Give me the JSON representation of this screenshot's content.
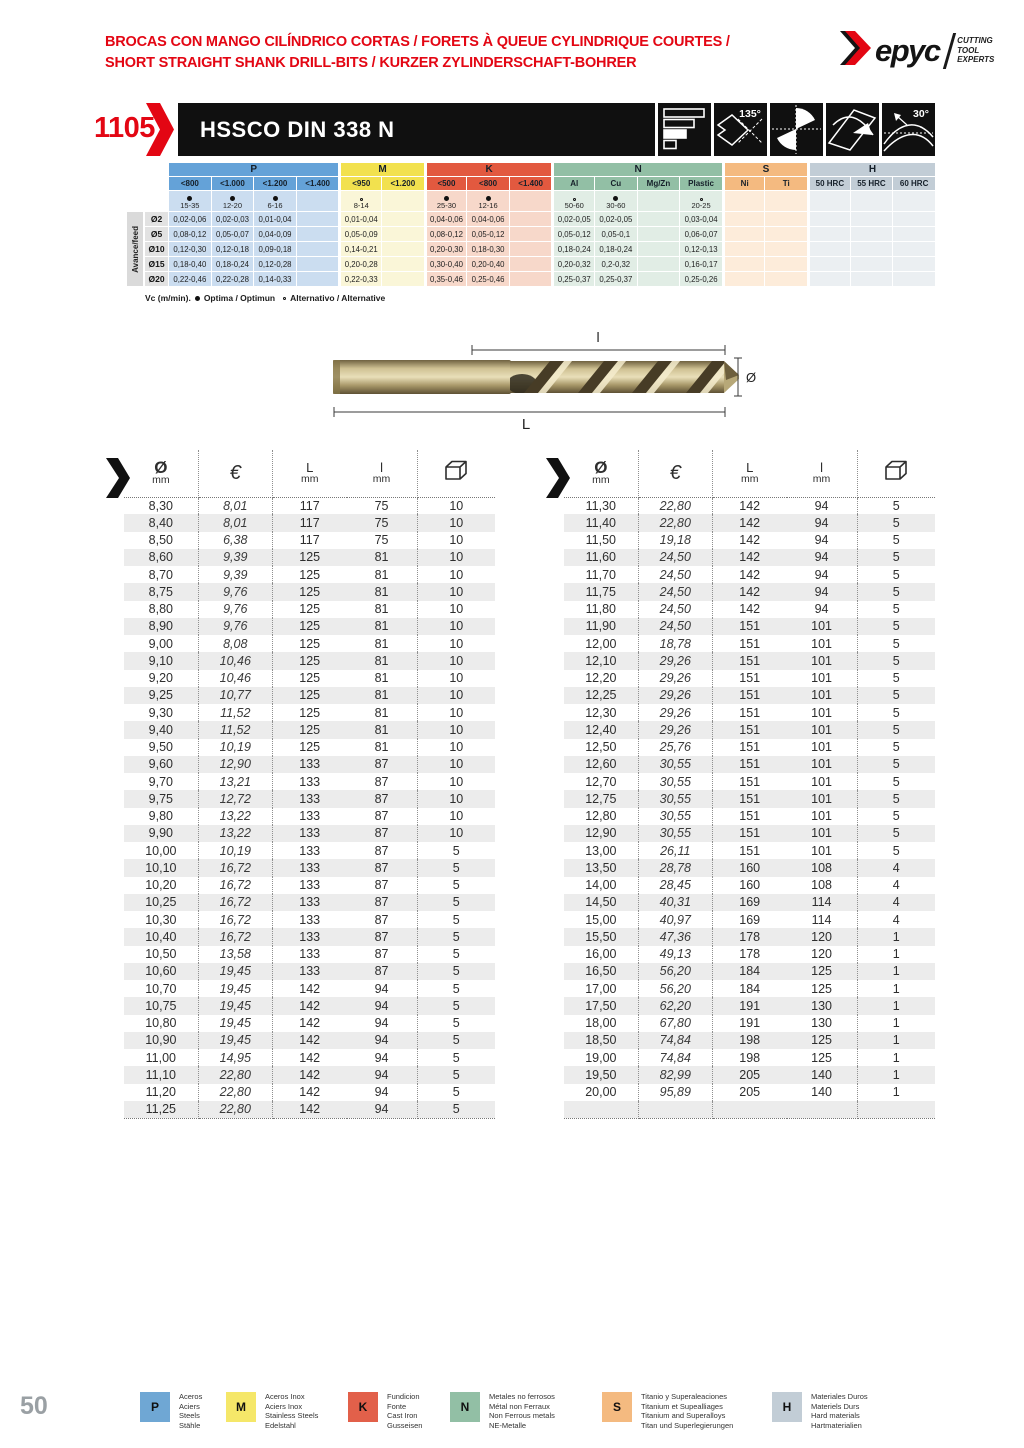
{
  "page": {
    "page_number": "50",
    "accent_red": "#e30613",
    "banner_black": "#101010"
  },
  "header": {
    "title_line1": "BROCAS CON MANGO CILÍNDRICO CORTAS / FORETS À QUEUE CYLINDRIQUE COURTES /",
    "title_line2": "SHORT STRAIGHT SHANK DRILL-BITS / KURZER ZYLINDERSCHAFT-BOHRER"
  },
  "logo": {
    "brand": "Hepyc",
    "brand_text": "epyc",
    "tagline_line1": "CUTTING",
    "tagline_line2": "TOOL",
    "tagline_line3": "EXPERTS"
  },
  "product_banner": {
    "code": "1105",
    "name": "HSSCO DIN 338 N",
    "point_angle": "135°",
    "helix_angle": "30°",
    "icons": [
      "shank-profile-icon",
      "point-angle-135-icon",
      "flute-cross-section-icon",
      "drill-point-icon",
      "helix-angle-30-icon"
    ]
  },
  "cutting_table": {
    "row_axis_label": "Avance/feed",
    "note_prefix": "Vc (m/min).",
    "note_optima": "Optima / Optimun",
    "note_alternative": "Alternativo / Alternative",
    "groups": [
      {
        "key": "P",
        "header_color": "#64a2d8",
        "body_color": "#cbddf0",
        "cols": [
          "<800",
          "<1.000",
          "<1.200",
          "<1.400"
        ]
      },
      {
        "key": "M",
        "header_color": "#f2e14e",
        "body_color": "#faf6d8",
        "cols": [
          "<950",
          "<1.200"
        ]
      },
      {
        "key": "K",
        "header_color": "#e2593f",
        "body_color": "#f7d8ca",
        "cols": [
          "<500",
          "<800",
          "<1.400"
        ]
      },
      {
        "key": "N",
        "header_color": "#92bfa5",
        "body_color": "#e1ede5",
        "cols": [
          "Al",
          "Cu",
          "Mg/Zn",
          "Plastic"
        ]
      },
      {
        "key": "S",
        "header_color": "#f4ba80",
        "body_color": "#fdecda",
        "cols": [
          "Ni",
          "Ti"
        ]
      },
      {
        "key": "H",
        "header_color": "#c2cdd6",
        "body_color": "#ebeff2",
        "cols": [
          "50 HRC",
          "55 HRC",
          "60 HRC"
        ]
      }
    ],
    "vc_row": [
      {
        "sym": "optima",
        "range": "15-35"
      },
      {
        "sym": "optima",
        "range": "12-20"
      },
      {
        "sym": "optima",
        "range": "6-16"
      },
      {
        "sym": "",
        "range": ""
      },
      {
        "sym": "alternative",
        "range": "8-14"
      },
      {
        "sym": "",
        "range": ""
      },
      {
        "sym": "optima",
        "range": "25-30"
      },
      {
        "sym": "optima",
        "range": "12-16"
      },
      {
        "sym": "",
        "range": ""
      },
      {
        "sym": "alternative",
        "range": "50-60"
      },
      {
        "sym": "optima",
        "range": "30-60"
      },
      {
        "sym": "",
        "range": ""
      },
      {
        "sym": "alternative",
        "range": "20-25"
      },
      {
        "sym": "",
        "range": ""
      },
      {
        "sym": "",
        "range": ""
      },
      {
        "sym": "",
        "range": ""
      },
      {
        "sym": "",
        "range": ""
      },
      {
        "sym": "",
        "range": ""
      }
    ],
    "feed_rows": [
      {
        "label": "Ø2",
        "values": [
          "0,02-0,06",
          "0,02-0,03",
          "0,01-0,04",
          "",
          "0,01-0,04",
          "",
          "0,04-0,06",
          "0,04-0,06",
          "",
          "0,02-0,05",
          "0,02-0,05",
          "",
          "0,03-0,04",
          "",
          "",
          "",
          "",
          ""
        ]
      },
      {
        "label": "Ø5",
        "values": [
          "0,08-0,12",
          "0,05-0,07",
          "0,04-0,09",
          "",
          "0,05-0,09",
          "",
          "0,08-0,12",
          "0,05-0,12",
          "",
          "0,05-0,12",
          "0,05-0,1",
          "",
          "0,06-0,07",
          "",
          "",
          "",
          "",
          ""
        ]
      },
      {
        "label": "Ø10",
        "values": [
          "0,12-0,30",
          "0,12-0,18",
          "0,09-0,18",
          "",
          "0,14-0,21",
          "",
          "0,20-0,30",
          "0,18-0,30",
          "",
          "0,18-0,24",
          "0,18-0,24",
          "",
          "0,12-0,13",
          "",
          "",
          "",
          "",
          ""
        ]
      },
      {
        "label": "Ø15",
        "values": [
          "0,18-0,40",
          "0,18-0,24",
          "0,12-0,28",
          "",
          "0,20-0,28",
          "",
          "0,30-0,40",
          "0,20-0,40",
          "",
          "0,20-0,32",
          "0,2-0,32",
          "",
          "0,16-0,17",
          "",
          "",
          "",
          "",
          ""
        ]
      },
      {
        "label": "Ø20",
        "values": [
          "0,22-0,46",
          "0,22-0,28",
          "0,14-0,33",
          "",
          "0,22-0,33",
          "",
          "0,35-0,46",
          "0,25-0,46",
          "",
          "0,25-0,37",
          "0,25-0,37",
          "",
          "0,25-0,26",
          "",
          "",
          "",
          "",
          ""
        ]
      }
    ]
  },
  "diagram": {
    "flute_length_label": "l",
    "total_length_label": "L",
    "diameter_label": "Ø"
  },
  "price_table": {
    "headers": {
      "diameter": "Ø",
      "diameter_unit": "mm",
      "price": "€",
      "length": "L",
      "length_unit": "mm",
      "flute": "l",
      "flute_unit": "mm",
      "box_icon": "package-quantity"
    },
    "left_rows": [
      [
        "8,30",
        "8,01",
        "117",
        "75",
        "10"
      ],
      [
        "8,40",
        "8,01",
        "117",
        "75",
        "10"
      ],
      [
        "8,50",
        "6,38",
        "117",
        "75",
        "10"
      ],
      [
        "8,60",
        "9,39",
        "125",
        "81",
        "10"
      ],
      [
        "8,70",
        "9,39",
        "125",
        "81",
        "10"
      ],
      [
        "8,75",
        "9,76",
        "125",
        "81",
        "10"
      ],
      [
        "8,80",
        "9,76",
        "125",
        "81",
        "10"
      ],
      [
        "8,90",
        "9,76",
        "125",
        "81",
        "10"
      ],
      [
        "9,00",
        "8,08",
        "125",
        "81",
        "10"
      ],
      [
        "9,10",
        "10,46",
        "125",
        "81",
        "10"
      ],
      [
        "9,20",
        "10,46",
        "125",
        "81",
        "10"
      ],
      [
        "9,25",
        "10,77",
        "125",
        "81",
        "10"
      ],
      [
        "9,30",
        "11,52",
        "125",
        "81",
        "10"
      ],
      [
        "9,40",
        "11,52",
        "125",
        "81",
        "10"
      ],
      [
        "9,50",
        "10,19",
        "125",
        "81",
        "10"
      ],
      [
        "9,60",
        "12,90",
        "133",
        "87",
        "10"
      ],
      [
        "9,70",
        "13,21",
        "133",
        "87",
        "10"
      ],
      [
        "9,75",
        "12,72",
        "133",
        "87",
        "10"
      ],
      [
        "9,80",
        "13,22",
        "133",
        "87",
        "10"
      ],
      [
        "9,90",
        "13,22",
        "133",
        "87",
        "10"
      ],
      [
        "10,00",
        "10,19",
        "133",
        "87",
        "5"
      ],
      [
        "10,10",
        "16,72",
        "133",
        "87",
        "5"
      ],
      [
        "10,20",
        "16,72",
        "133",
        "87",
        "5"
      ],
      [
        "10,25",
        "16,72",
        "133",
        "87",
        "5"
      ],
      [
        "10,30",
        "16,72",
        "133",
        "87",
        "5"
      ],
      [
        "10,40",
        "16,72",
        "133",
        "87",
        "5"
      ],
      [
        "10,50",
        "13,58",
        "133",
        "87",
        "5"
      ],
      [
        "10,60",
        "19,45",
        "133",
        "87",
        "5"
      ],
      [
        "10,70",
        "19,45",
        "142",
        "94",
        "5"
      ],
      [
        "10,75",
        "19,45",
        "142",
        "94",
        "5"
      ],
      [
        "10,80",
        "19,45",
        "142",
        "94",
        "5"
      ],
      [
        "10,90",
        "19,45",
        "142",
        "94",
        "5"
      ],
      [
        "11,00",
        "14,95",
        "142",
        "94",
        "5"
      ],
      [
        "11,10",
        "22,80",
        "142",
        "94",
        "5"
      ],
      [
        "11,20",
        "22,80",
        "142",
        "94",
        "5"
      ],
      [
        "11,25",
        "22,80",
        "142",
        "94",
        "5"
      ]
    ],
    "right_rows": [
      [
        "11,30",
        "22,80",
        "142",
        "94",
        "5"
      ],
      [
        "11,40",
        "22,80",
        "142",
        "94",
        "5"
      ],
      [
        "11,50",
        "19,18",
        "142",
        "94",
        "5"
      ],
      [
        "11,60",
        "24,50",
        "142",
        "94",
        "5"
      ],
      [
        "11,70",
        "24,50",
        "142",
        "94",
        "5"
      ],
      [
        "11,75",
        "24,50",
        "142",
        "94",
        "5"
      ],
      [
        "11,80",
        "24,50",
        "142",
        "94",
        "5"
      ],
      [
        "11,90",
        "24,50",
        "151",
        "101",
        "5"
      ],
      [
        "12,00",
        "18,78",
        "151",
        "101",
        "5"
      ],
      [
        "12,10",
        "29,26",
        "151",
        "101",
        "5"
      ],
      [
        "12,20",
        "29,26",
        "151",
        "101",
        "5"
      ],
      [
        "12,25",
        "29,26",
        "151",
        "101",
        "5"
      ],
      [
        "12,30",
        "29,26",
        "151",
        "101",
        "5"
      ],
      [
        "12,40",
        "29,26",
        "151",
        "101",
        "5"
      ],
      [
        "12,50",
        "25,76",
        "151",
        "101",
        "5"
      ],
      [
        "12,60",
        "30,55",
        "151",
        "101",
        "5"
      ],
      [
        "12,70",
        "30,55",
        "151",
        "101",
        "5"
      ],
      [
        "12,75",
        "30,55",
        "151",
        "101",
        "5"
      ],
      [
        "12,80",
        "30,55",
        "151",
        "101",
        "5"
      ],
      [
        "12,90",
        "30,55",
        "151",
        "101",
        "5"
      ],
      [
        "13,00",
        "26,11",
        "151",
        "101",
        "5"
      ],
      [
        "13,50",
        "28,78",
        "160",
        "108",
        "4"
      ],
      [
        "14,00",
        "28,45",
        "160",
        "108",
        "4"
      ],
      [
        "14,50",
        "40,31",
        "169",
        "114",
        "4"
      ],
      [
        "15,00",
        "40,97",
        "169",
        "114",
        "4"
      ],
      [
        "15,50",
        "47,36",
        "178",
        "120",
        "1"
      ],
      [
        "16,00",
        "49,13",
        "178",
        "120",
        "1"
      ],
      [
        "16,50",
        "56,20",
        "184",
        "125",
        "1"
      ],
      [
        "17,00",
        "56,20",
        "184",
        "125",
        "1"
      ],
      [
        "17,50",
        "62,20",
        "191",
        "130",
        "1"
      ],
      [
        "18,00",
        "67,80",
        "191",
        "130",
        "1"
      ],
      [
        "18,50",
        "74,84",
        "198",
        "125",
        "1"
      ],
      [
        "19,00",
        "74,84",
        "198",
        "125",
        "1"
      ],
      [
        "19,50",
        "82,99",
        "205",
        "140",
        "1"
      ],
      [
        "20,00",
        "95,89",
        "205",
        "140",
        "1"
      ]
    ]
  },
  "legend": {
    "items": [
      {
        "key": "P",
        "color": "#6fa7d4",
        "line1": "Aceros",
        "line2": "Aciers",
        "line3": "Steels",
        "line4": "Stähle"
      },
      {
        "key": "M",
        "color": "#f5e769",
        "line1": "Aceros Inox",
        "line2": "Aciers Inox",
        "line3": "Stainless Steels",
        "line4": "Edelstahl"
      },
      {
        "key": "K",
        "color": "#e2604a",
        "line1": "Fundicion",
        "line2": "Fonte",
        "line3": "Cast Iron",
        "line4": "Gusseisen"
      },
      {
        "key": "N",
        "color": "#92bfa5",
        "line1": "Metales no ferrosos",
        "line2": "Métal non Ferraux",
        "line3": "Non Ferrous metals",
        "line4": "NE-Metalle"
      },
      {
        "key": "S",
        "color": "#f4ba80",
        "line1": "Titanio y Superaleaciones",
        "line2": "Titanium et Supealliages",
        "line3": "Titanium and Superalloys",
        "line4": "Titan und Superlegierungen"
      },
      {
        "key": "H",
        "color": "#c2cdd6",
        "line1": "Materiales Duros",
        "line2": "Materiels Durs",
        "line3": "Hard materials",
        "line4": "Hartmaterialien"
      }
    ]
  }
}
